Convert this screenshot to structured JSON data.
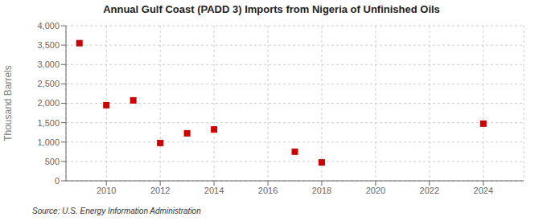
{
  "chart_data": {
    "type": "scatter",
    "title": "Annual Gulf Coast (PADD 3) Imports from Nigeria of Unfinished Oils",
    "ylabel": "Thousand Barrels",
    "annotations": [
      "Source: U.S. Energy Information Administration"
    ],
    "x": [
      2009,
      2010,
      2011,
      2012,
      2013,
      2014,
      2017,
      2018,
      2024
    ],
    "values": [
      3550,
      1950,
      2075,
      975,
      1225,
      1325,
      750,
      475,
      1475
    ],
    "color": "#cc0000",
    "marker": "square",
    "xlim": [
      2008.5,
      2025.5
    ],
    "ylim": [
      0,
      4000
    ],
    "xticks": [
      2010,
      2012,
      2014,
      2016,
      2018,
      2020,
      2022,
      2024
    ],
    "yticks": [
      0,
      500,
      {
        "value": 1000,
        "label": "1,000"
      },
      {
        "value": 1500,
        "label": "1,500"
      },
      {
        "value": 2000,
        "label": "2,000"
      },
      {
        "value": 2500,
        "label": "2,500"
      },
      {
        "value": 3000,
        "label": "3,000"
      },
      {
        "value": 3500,
        "label": "3,500"
      },
      {
        "value": 4000,
        "label": "4,000"
      }
    ],
    "grid": true
  }
}
